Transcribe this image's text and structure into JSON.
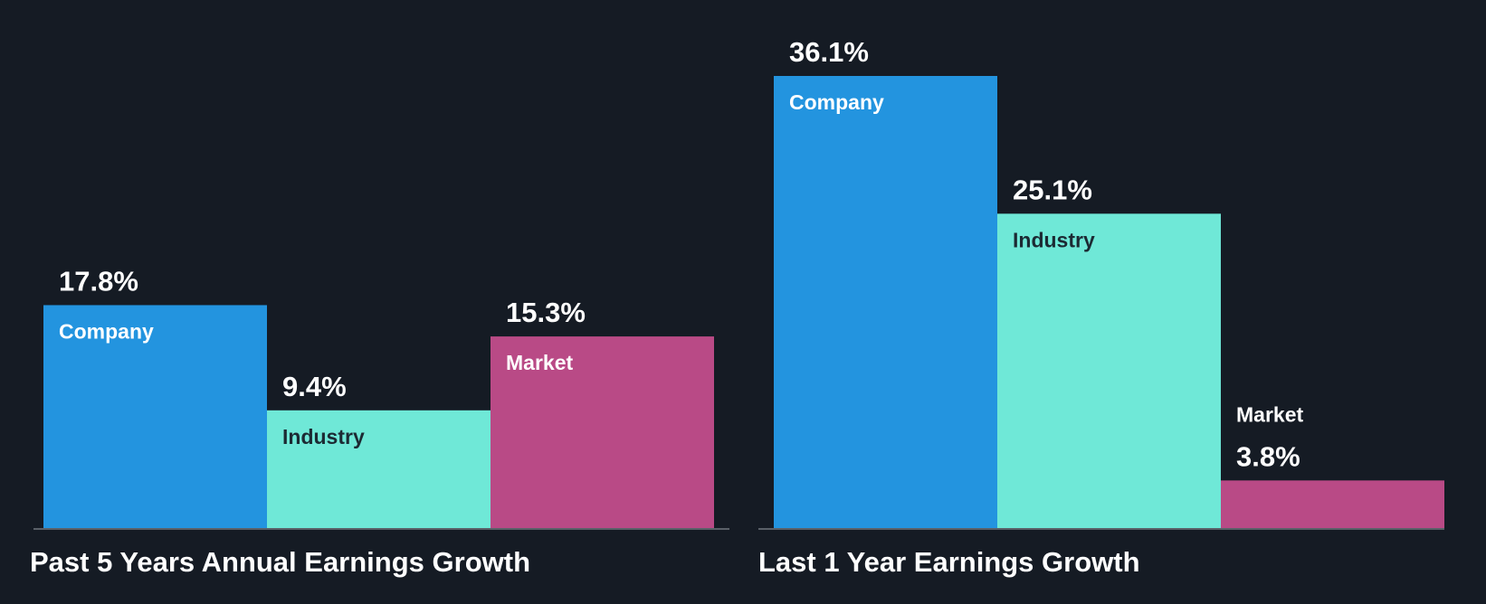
{
  "chart_data": [
    {
      "type": "bar",
      "title": "Past 5 Years Annual Earnings Growth",
      "categories": [
        "Company",
        "Industry",
        "Market"
      ],
      "values": [
        17.8,
        9.4,
        15.3
      ],
      "value_labels": [
        "17.8%",
        "9.4%",
        "15.3%"
      ],
      "colors": [
        "#2394df",
        "#6fe8d7",
        "#b94a86"
      ],
      "label_colors": [
        "#ffffff",
        "#1c2a33",
        "#ffffff"
      ],
      "unit": "%",
      "ylim": [
        0,
        36.1
      ],
      "grid": false
    },
    {
      "type": "bar",
      "title": "Last 1 Year Earnings Growth",
      "categories": [
        "Company",
        "Industry",
        "Market"
      ],
      "values": [
        36.1,
        25.1,
        3.8
      ],
      "value_labels": [
        "36.1%",
        "25.1%",
        "3.8%"
      ],
      "colors": [
        "#2394df",
        "#6fe8d7",
        "#b94a86"
      ],
      "label_colors": [
        "#ffffff",
        "#1c2a33",
        "#ffffff"
      ],
      "unit": "%",
      "ylim": [
        0,
        36.1
      ],
      "grid": false
    }
  ],
  "colors": {
    "background": "#151b24",
    "baseline": "#5a6068",
    "text": "#ffffff"
  }
}
